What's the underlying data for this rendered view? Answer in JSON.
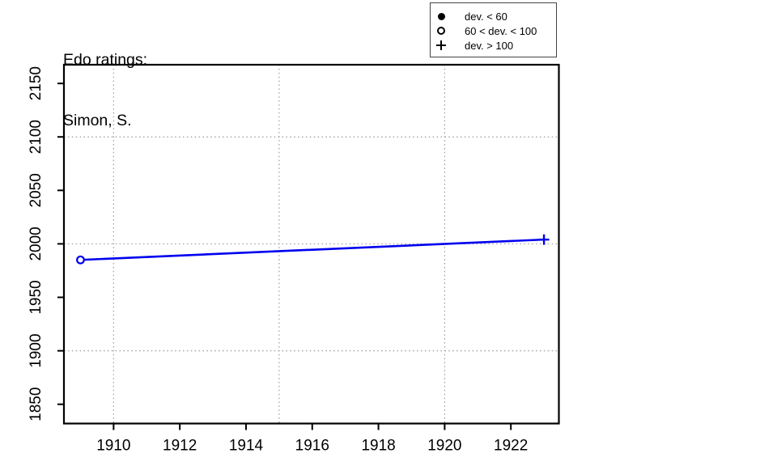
{
  "page": {
    "background": "#ffffff"
  },
  "chart": {
    "title_line1": "Edo ratings:",
    "title_line2": "Simon, S."
  },
  "legend": {
    "position": "top-right",
    "entries": [
      {
        "symbol": "filled-circle",
        "label": "dev. < 60"
      },
      {
        "symbol": "open-circle",
        "label": "60 < dev. < 100"
      },
      {
        "symbol": "plus",
        "label": "dev. > 100"
      }
    ]
  },
  "chart_data": {
    "type": "line",
    "title": "Edo ratings: Simon, S.",
    "xlabel": "",
    "ylabel": "",
    "xlim": [
      1908.5,
      1923.45
    ],
    "ylim": [
      1832,
      2167.5
    ],
    "xticks": [
      1910,
      1912,
      1914,
      1916,
      1918,
      1920,
      1922
    ],
    "yticks": [
      1850,
      1900,
      1950,
      2000,
      2050,
      2100,
      2150
    ],
    "grid": {
      "x": [
        1910,
        1915,
        1920
      ],
      "y": [
        1900,
        2000,
        2100
      ],
      "style": "dotted",
      "color": "#9a9a9a"
    },
    "series": [
      {
        "name": "Simon, S.",
        "color": "#0000ee",
        "points": [
          {
            "x": 1909,
            "y": 1985,
            "marker": "open-circle",
            "deviation_class": "60 < dev. < 100"
          },
          {
            "x": 1923,
            "y": 2004,
            "marker": "plus",
            "deviation_class": "dev. > 100"
          }
        ]
      }
    ],
    "legend_position": "top-right"
  }
}
